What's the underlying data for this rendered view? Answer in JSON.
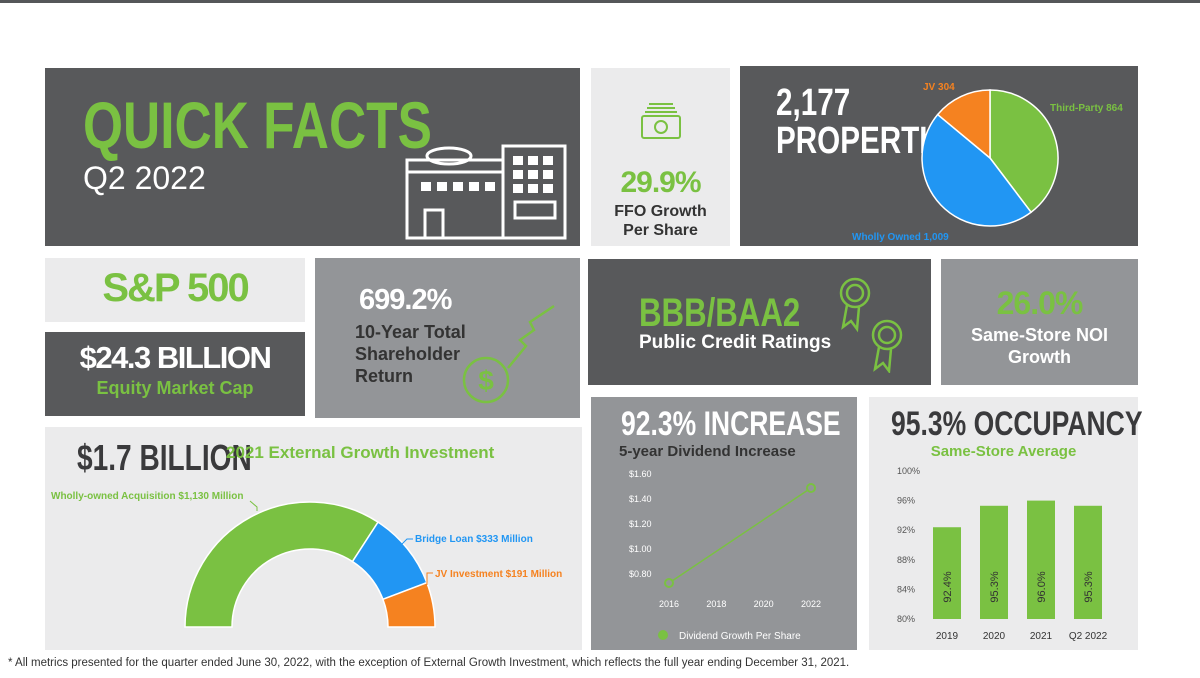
{
  "header": {
    "title": "QUICK FACTS",
    "period": "Q2 2022"
  },
  "ffo": {
    "value": "29.9%",
    "label1": "FFO Growth",
    "label2": "Per Share"
  },
  "properties": {
    "count": "2,177",
    "label": "PROPERTIES",
    "chart_data": {
      "type": "pie",
      "slices": [
        {
          "label": "Third-Party 864",
          "value": 864,
          "color": "#7ac142"
        },
        {
          "label": "Wholly Owned 1,009",
          "value": 1009,
          "color": "#2196f3"
        },
        {
          "label": "JV 304",
          "value": 304,
          "color": "#f58220"
        }
      ]
    }
  },
  "sp500": {
    "label": "S&P 500"
  },
  "market_cap": {
    "value": "$24.3 BILLION",
    "label": "Equity Market Cap"
  },
  "tsr": {
    "value": "699.2%",
    "label1": "10-Year Total",
    "label2": "Shareholder",
    "label3": "Return"
  },
  "credit": {
    "value": "BBB/BAA2",
    "label": "Public Credit Ratings"
  },
  "noi": {
    "value": "26.0%",
    "label1": "Same-Store NOI",
    "label2": "Growth"
  },
  "external": {
    "value": "$1.7 BILLION",
    "label": "2021 External Growth Investment",
    "chart_data": {
      "type": "pie",
      "slices": [
        {
          "label": "Wholly-owned Acquisition $1,130 Million",
          "value": 1130,
          "color": "#7ac142"
        },
        {
          "label": "Bridge Loan $333 Million",
          "value": 333,
          "color": "#2196f3"
        },
        {
          "label": "JV Investment $191 Million",
          "value": 191,
          "color": "#f58220"
        }
      ]
    }
  },
  "dividend": {
    "title": "92.3% INCREASE",
    "subtitle": "5-year Dividend Increase",
    "legend": "Dividend Growth Per Share",
    "chart_data": {
      "type": "line",
      "x": [
        2016,
        2022
      ],
      "series": [
        {
          "name": "Dividend Growth Per Share",
          "values": [
            0.72,
            1.48
          ]
        }
      ],
      "yticks": [
        "$0.80",
        "$1.00",
        "$1.20",
        "$1.40",
        "$1.60"
      ],
      "xticks": [
        "2016",
        "2018",
        "2020",
        "2022"
      ],
      "ylim": [
        0.7,
        1.6
      ]
    }
  },
  "occupancy": {
    "title": "95.3% OCCUPANCY",
    "subtitle": "Same-Store Average",
    "chart_data": {
      "type": "bar",
      "categories": [
        "2019",
        "2020",
        "2021",
        "Q2 2022"
      ],
      "values": [
        92.4,
        95.3,
        96.0,
        95.3
      ],
      "labels": [
        "92.4%",
        "95.3%",
        "96.0%",
        "95.3%"
      ],
      "yticks": [
        "80%",
        "84%",
        "88%",
        "92%",
        "96%",
        "100%"
      ],
      "ylim": [
        80,
        100
      ]
    }
  },
  "footnote": "* All metrics presented for the quarter ended June 30, 2022, with the exception of External Growth Investment, which reflects the full year ending December 31, 2021."
}
